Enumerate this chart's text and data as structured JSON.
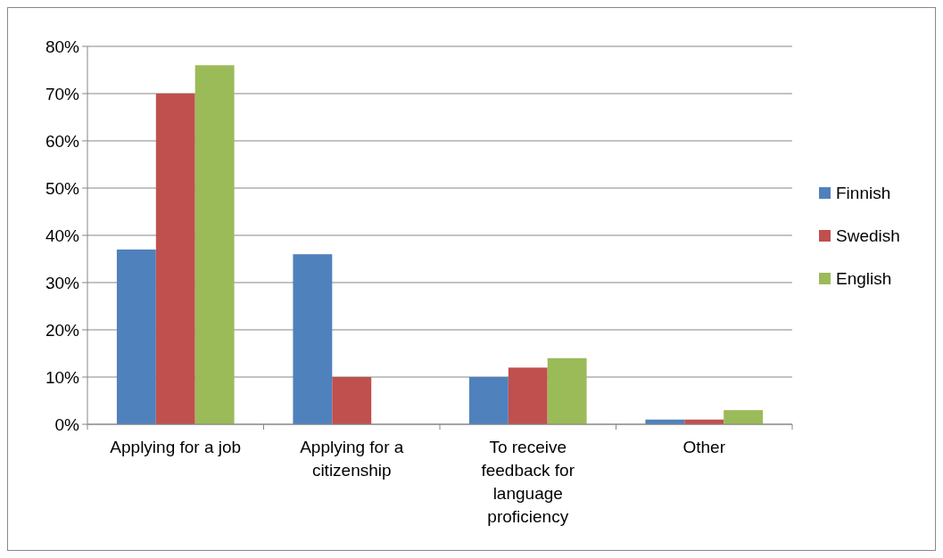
{
  "chart_data": {
    "type": "bar",
    "categories": [
      "Applying for a job",
      "Applying for a citizenship",
      "To receive feedback for language proficiency",
      "Other"
    ],
    "series": [
      {
        "name": "Finnish",
        "color": "#4f81bd",
        "values": [
          0.37,
          0.36,
          0.1,
          0.01
        ]
      },
      {
        "name": "Swedish",
        "color": "#c0504d",
        "values": [
          0.7,
          0.1,
          0.12,
          0.01
        ]
      },
      {
        "name": "English",
        "color": "#9bbb59",
        "values": [
          0.76,
          0,
          0.14,
          0.03
        ]
      }
    ],
    "ylim": [
      0,
      0.8
    ],
    "yticks": [
      {
        "value": 0,
        "label": "0%"
      },
      {
        "value": 0.1,
        "label": "10%"
      },
      {
        "value": 0.2,
        "label": "20%"
      },
      {
        "value": 0.3,
        "label": "30%"
      },
      {
        "value": 0.4,
        "label": "40%"
      },
      {
        "value": 0.5,
        "label": "50%"
      },
      {
        "value": 0.6,
        "label": "60%"
      },
      {
        "value": 0.7,
        "label": "70%"
      },
      {
        "value": 0.8,
        "label": "80%"
      }
    ],
    "grid": "y",
    "legend": "right"
  }
}
